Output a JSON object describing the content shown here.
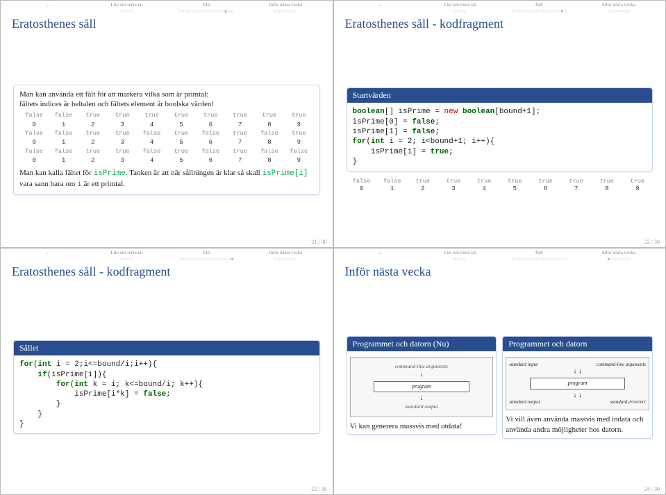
{
  "nav": {
    "sections": [
      {
        "label": "",
        "dots": "○"
      },
      {
        "label": "Lite om reela tal",
        "dots": "○○○○"
      },
      {
        "label": "Fält",
        "dots": "○○○○○○○○○○○○○○●○○"
      },
      {
        "label": "Inför nästa vecka",
        "dots": "○○○○○○○"
      }
    ],
    "sections_s22": [
      {
        "label": "",
        "dots": "○"
      },
      {
        "label": "Lite om reela tal",
        "dots": "○○○○"
      },
      {
        "label": "Fält",
        "dots": "○○○○○○○○○○○○○○○●○"
      },
      {
        "label": "Inför nästa vecka",
        "dots": "○○○○○○○"
      }
    ],
    "sections_s23": [
      {
        "label": "",
        "dots": "○"
      },
      {
        "label": "Lite om reela tal",
        "dots": "○○○○"
      },
      {
        "label": "Fält",
        "dots": "○○○○○○○○○○○○○○○○●"
      },
      {
        "label": "Inför nästa vecka",
        "dots": "○○○○○○○"
      }
    ],
    "sections_s24": [
      {
        "label": "",
        "dots": "○"
      },
      {
        "label": "Lite om reela tal",
        "dots": "○○○○"
      },
      {
        "label": "Fält",
        "dots": "○○○○○○○○○○○○○○○○○"
      },
      {
        "label": "Inför nästa vecka",
        "dots": "●○○○○○○"
      }
    ]
  },
  "s21": {
    "title": "Eratosthenes såll",
    "intro1": "Man kan använda ett fält för att markera vilka som är primtal:",
    "intro2": "fältets indices är heltalen och fältets element är boolska värden!",
    "rows": [
      [
        "false",
        "false",
        "true",
        "true",
        "true",
        "true",
        "true",
        "true",
        "true",
        "true"
      ],
      [
        "0",
        "1",
        "2",
        "3",
        "4",
        "5",
        "6",
        "7",
        "8",
        "9"
      ],
      [
        "false",
        "false",
        "true",
        "true",
        "false",
        "true",
        "false",
        "true",
        "false",
        "true"
      ],
      [
        "0",
        "1",
        "2",
        "3",
        "4",
        "5",
        "6",
        "7",
        "8",
        "9"
      ],
      [
        "false",
        "false",
        "true",
        "true",
        "false",
        "true",
        "false",
        "true",
        "false",
        "false"
      ],
      [
        "0",
        "1",
        "2",
        "3",
        "4",
        "5",
        "6",
        "7",
        "8",
        "9"
      ]
    ],
    "out_a": "Man kan kalla fältet för ",
    "out_code1": "isPrime",
    "out_b": ". Tanken är att när sållningen är klar så skall ",
    "out_code2": "isPrime[i]",
    "out_c": " vara sann bara om ",
    "out_code3": "i",
    "out_d": " är ett primtal.",
    "page": "21 / 30"
  },
  "s22": {
    "title": "Eratosthenes såll - kodfragment",
    "block": "Startvärden",
    "code_lines": [
      [
        "boolean",
        "[] isPrime = ",
        "new",
        " ",
        "boolean",
        "[bound+1];"
      ],
      [
        "",
        "isPrime[0] = ",
        "",
        "",
        "false",
        ";"
      ],
      [
        "",
        "isPrime[1] = ",
        "",
        "",
        "false",
        ";"
      ],
      [
        "for",
        "(",
        "int",
        " i = 2; i<bound+1; i++){",
        ""
      ],
      [
        "",
        "    isPrime[i] = ",
        "",
        "",
        "true",
        ";"
      ],
      [
        "",
        "}",
        "",
        "",
        "",
        ""
      ]
    ],
    "row1": [
      "false",
      "false",
      "true",
      "true",
      "true",
      "true",
      "true",
      "true",
      "true",
      "true"
    ],
    "row2": [
      "0",
      "1",
      "2",
      "3",
      "4",
      "5",
      "6",
      "7",
      "8",
      "9"
    ],
    "page": "22 / 30"
  },
  "s23": {
    "title": "Eratosthenes såll - kodfragment",
    "block": "Sållet",
    "code": "for(int i = 2;i<=bound/i;i++){\n    if(isPrime[i]){\n        for(int k = i; k<=bound/i; k++){\n            isPrime[i*k] = false;\n        }\n    }\n}",
    "page": "23 / 30"
  },
  "s24": {
    "title": "Inför nästa vecka",
    "left_block": "Programmet och datorn (Nu)",
    "left_text": "Vi kan generera massvis med utdata!",
    "right_block": "Programmet och datorn",
    "right_text": "Vi vill även använda massvis med indata och använda andra möjligheter hos datorn.",
    "diag": {
      "cmd": "command-line arguments",
      "prog": "program",
      "stdout": "standard output",
      "stdin": "standard input",
      "stderr": "standard error/err"
    },
    "page": "24 / 30"
  },
  "colors": {
    "accent": "#2a4d8f",
    "keyword": "#006400",
    "new": "#c00000"
  }
}
